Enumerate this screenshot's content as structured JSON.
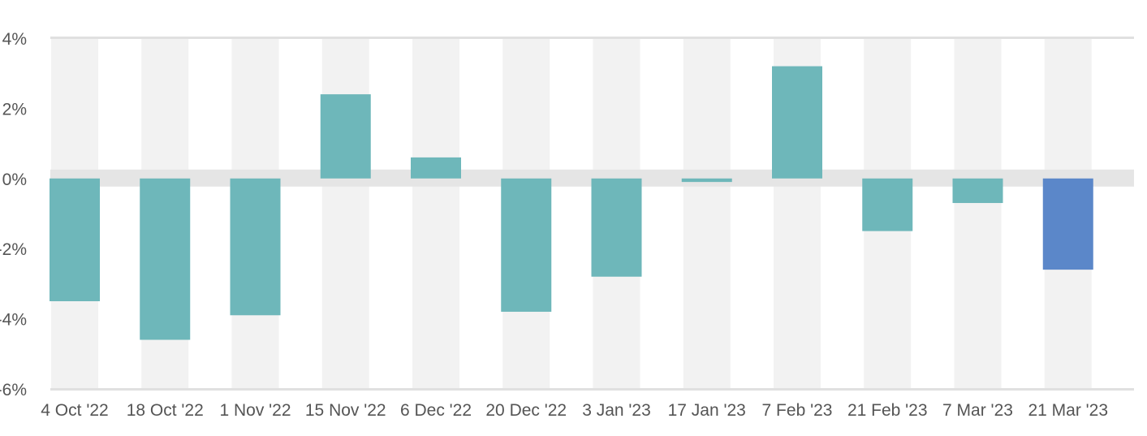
{
  "chart_data": {
    "type": "bar",
    "title": "",
    "xlabel": "",
    "ylabel": "",
    "categories": [
      "4 Oct '22",
      "18 Oct '22",
      "1 Nov '22",
      "15 Nov '22",
      "6 Dec '22",
      "20 Dec '22",
      "3 Jan '23",
      "17 Jan '23",
      "7 Feb '23",
      "21 Feb '23",
      "7 Mar '23",
      "21 Mar '23"
    ],
    "values": [
      -3.5,
      -4.6,
      -3.9,
      2.4,
      0.6,
      -3.8,
      -2.8,
      -0.1,
      3.2,
      -1.5,
      -0.7,
      -2.6
    ],
    "ylim": [
      -6,
      4
    ],
    "yticks": [
      4,
      2,
      0,
      -2,
      -4,
      -6
    ],
    "ytick_labels": [
      "4%",
      "2%",
      "0%",
      "-2%",
      "-4%",
      "-6%"
    ],
    "colors": {
      "bar": "#6eb7ba",
      "highlight_bar": "#5b87c9",
      "band": "#f2f2f2",
      "zero_band": "#e5e5e5",
      "axis": "#e0e0e0",
      "text": "#555555"
    },
    "highlight_index": 11,
    "legend": "none",
    "grid": false
  }
}
